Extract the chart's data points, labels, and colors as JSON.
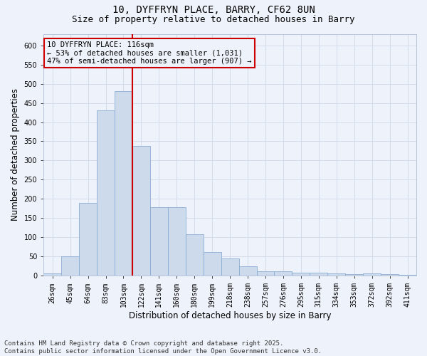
{
  "title": "10, DYFFRYN PLACE, BARRY, CF62 8UN",
  "subtitle": "Size of property relative to detached houses in Barry",
  "xlabel": "Distribution of detached houses by size in Barry",
  "ylabel": "Number of detached properties",
  "categories": [
    "26sqm",
    "45sqm",
    "64sqm",
    "83sqm",
    "103sqm",
    "122sqm",
    "141sqm",
    "160sqm",
    "180sqm",
    "199sqm",
    "218sqm",
    "238sqm",
    "257sqm",
    "276sqm",
    "295sqm",
    "315sqm",
    "334sqm",
    "353sqm",
    "372sqm",
    "392sqm",
    "411sqm"
  ],
  "values": [
    5,
    50,
    190,
    430,
    480,
    338,
    178,
    178,
    108,
    62,
    44,
    24,
    11,
    11,
    8,
    8,
    5,
    4,
    5,
    4,
    3
  ],
  "bar_color": "#ccdaeb",
  "bar_edge_color": "#8aadd4",
  "vline_x_index": 4.5,
  "vline_color": "#cc0000",
  "annotation_text_line1": "10 DYFFRYN PLACE: 116sqm",
  "annotation_text_line2": "← 53% of detached houses are smaller (1,031)",
  "annotation_text_line3": "47% of semi-detached houses are larger (907) →",
  "annotation_box_color": "#cc0000",
  "ylim": [
    0,
    630
  ],
  "yticks": [
    0,
    50,
    100,
    150,
    200,
    250,
    300,
    350,
    400,
    450,
    500,
    550,
    600
  ],
  "grid_color": "#d4dcea",
  "background_color": "#eef2fa",
  "footer": "Contains HM Land Registry data © Crown copyright and database right 2025.\nContains public sector information licensed under the Open Government Licence v3.0.",
  "title_fontsize": 10,
  "subtitle_fontsize": 9,
  "xlabel_fontsize": 8.5,
  "ylabel_fontsize": 8.5,
  "tick_fontsize": 7,
  "footer_fontsize": 6.5,
  "annotation_fontsize": 7.5
}
